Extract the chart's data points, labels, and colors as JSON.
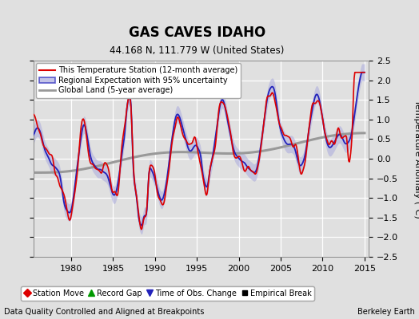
{
  "title": "GAS CAVES IDAHO",
  "subtitle": "44.168 N, 111.779 W (United States)",
  "ylabel": "Temperature Anomaly (°C)",
  "xlabel_note": "Data Quality Controlled and Aligned at Breakpoints",
  "credit": "Berkeley Earth",
  "ylim": [
    -2.5,
    2.5
  ],
  "xlim": [
    1975.5,
    2015.5
  ],
  "yticks": [
    -2.5,
    -2,
    -1.5,
    -1,
    -0.5,
    0,
    0.5,
    1,
    1.5,
    2,
    2.5
  ],
  "xticks": [
    1980,
    1985,
    1990,
    1995,
    2000,
    2005,
    2010,
    2015
  ],
  "line_red": "#dd0000",
  "line_blue": "#2222bb",
  "line_gray": "#999999",
  "fill_blue": "#aaaadd",
  "bg_color": "#e0e0e0",
  "grid_color": "#ffffff",
  "title_fontsize": 12,
  "subtitle_fontsize": 8.5,
  "tick_fontsize": 8,
  "legend_items": [
    {
      "label": "This Temperature Station (12-month average)",
      "color": "#dd0000",
      "lw": 1.5
    },
    {
      "label": "Regional Expectation with 95% uncertainty",
      "color": "#2222bb",
      "lw": 1.5
    },
    {
      "label": "Global Land (5-year average)",
      "color": "#999999",
      "lw": 2.0
    }
  ],
  "legend_markers": [
    {
      "label": "Station Move",
      "color": "#dd0000",
      "marker": "D"
    },
    {
      "label": "Record Gap",
      "color": "#009900",
      "marker": "^"
    },
    {
      "label": "Time of Obs. Change",
      "color": "#2222bb",
      "marker": "v"
    },
    {
      "label": "Empirical Break",
      "color": "#000000",
      "marker": "s"
    }
  ]
}
